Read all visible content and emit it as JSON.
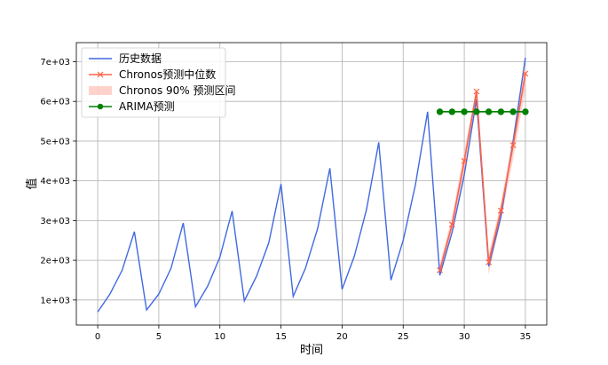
{
  "chart_data": {
    "type": "line",
    "title": "",
    "xlabel": "时间",
    "ylabel": "值",
    "xlim": [
      -1.75,
      36.75
    ],
    "ylim": [
      370,
      7480
    ],
    "x_ticks": [
      0,
      5,
      10,
      15,
      20,
      25,
      30,
      35
    ],
    "y_ticks": [
      1000,
      2000,
      3000,
      4000,
      5000,
      6000,
      7000
    ],
    "y_tick_labels": [
      "1e+03",
      "2e+03",
      "3e+03",
      "4e+03",
      "5e+03",
      "6e+03",
      "7e+03"
    ],
    "grid": true,
    "legend_position": "top-left",
    "series": [
      {
        "name": "历史数据",
        "kind": "line",
        "color": "#4169e1",
        "x": [
          0,
          1,
          2,
          3,
          4,
          5,
          6,
          7,
          8,
          9,
          10,
          11,
          12,
          13,
          14,
          15,
          16,
          17,
          18,
          19,
          20,
          21,
          22,
          23,
          24,
          25,
          26,
          27,
          28,
          29,
          30,
          31,
          32,
          33,
          34,
          35
        ],
        "y": [
          700,
          1150,
          1750,
          2720,
          750,
          1150,
          1800,
          2940,
          830,
          1350,
          2080,
          3240,
          980,
          1600,
          2440,
          3920,
          1090,
          1800,
          2800,
          4320,
          1270,
          2100,
          3280,
          4970,
          1500,
          2500,
          3900,
          5740,
          1620,
          2700,
          4150,
          6050,
          1850,
          3100,
          5000,
          7100
        ]
      },
      {
        "name": "Chronos预测中位数",
        "kind": "line-marker",
        "marker": "x",
        "color": "#ff6347",
        "x": [
          28,
          29,
          30,
          31,
          32,
          33,
          34,
          35
        ],
        "y": [
          1750,
          2900,
          4500,
          6250,
          1950,
          3250,
          4900,
          6700
        ]
      },
      {
        "name": "Chronos 90% 预测区间",
        "kind": "band",
        "color": "#ffb6a8",
        "x": [
          28,
          29,
          30,
          31,
          32,
          33,
          34,
          35
        ],
        "lower": [
          1600,
          2700,
          4200,
          5950,
          1650,
          3000,
          4550,
          6300
        ],
        "upper": [
          1900,
          3100,
          4750,
          6350,
          2150,
          3450,
          5150,
          6900
        ]
      },
      {
        "name": "ARIMA预测",
        "kind": "line-marker",
        "marker": "o",
        "color": "#008000",
        "x": [
          28,
          29,
          30,
          31,
          32,
          33,
          34,
          35
        ],
        "y": [
          5740,
          5740,
          5740,
          5740,
          5740,
          5740,
          5740,
          5740
        ]
      }
    ]
  }
}
